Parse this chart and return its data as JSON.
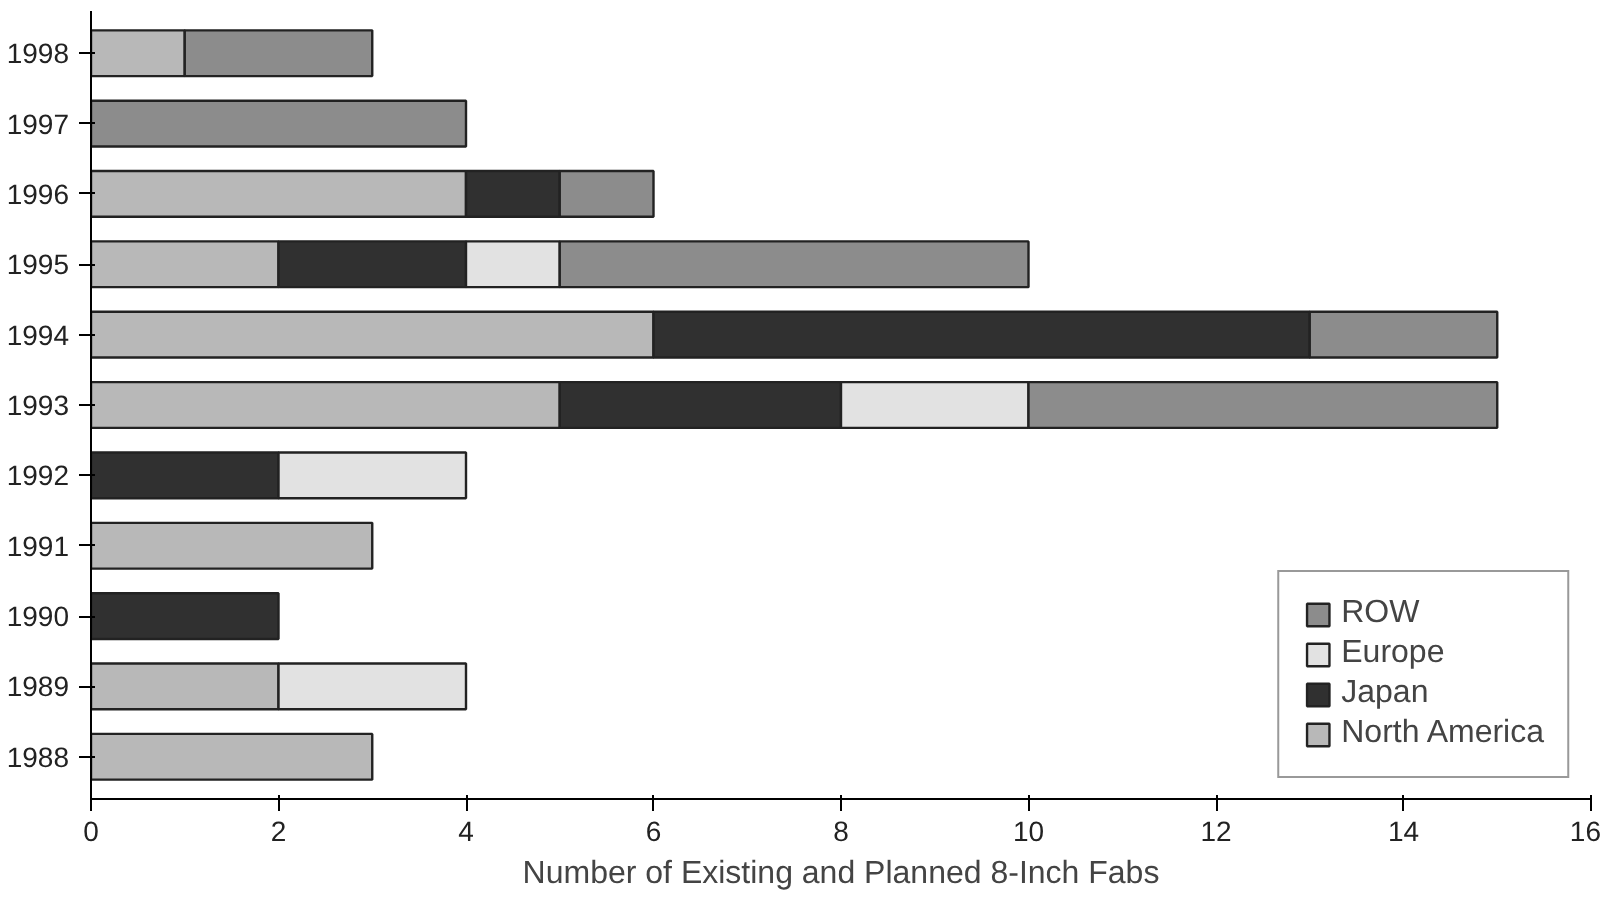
{
  "chart_data": {
    "type": "bar",
    "orientation": "horizontal",
    "stacked": true,
    "xlabel": "Number of Existing and Planned 8-Inch Fabs",
    "categories": [
      "1998",
      "1997",
      "1996",
      "1995",
      "1994",
      "1993",
      "1992",
      "1991",
      "1990",
      "1989",
      "1988"
    ],
    "series": [
      {
        "name": "North America",
        "color": "#b8b8b8",
        "values": [
          1,
          0,
          4,
          2,
          6,
          5,
          0,
          3,
          0,
          2,
          3
        ]
      },
      {
        "name": "Japan",
        "color": "#303030",
        "values": [
          0,
          0,
          1,
          2,
          7,
          3,
          2,
          0,
          2,
          0,
          0
        ]
      },
      {
        "name": "Europe",
        "color": "#e2e2e2",
        "values": [
          0,
          0,
          0,
          1,
          0,
          2,
          2,
          0,
          0,
          2,
          0
        ]
      },
      {
        "name": "ROW",
        "color": "#8c8c8c",
        "values": [
          2,
          4,
          1,
          5,
          2,
          5,
          0,
          0,
          0,
          0,
          0
        ]
      }
    ],
    "xlim": [
      0,
      16
    ],
    "xticks": [
      0,
      2,
      4,
      6,
      8,
      10,
      12,
      14,
      16
    ],
    "grid": false,
    "legend": "bottom right"
  }
}
